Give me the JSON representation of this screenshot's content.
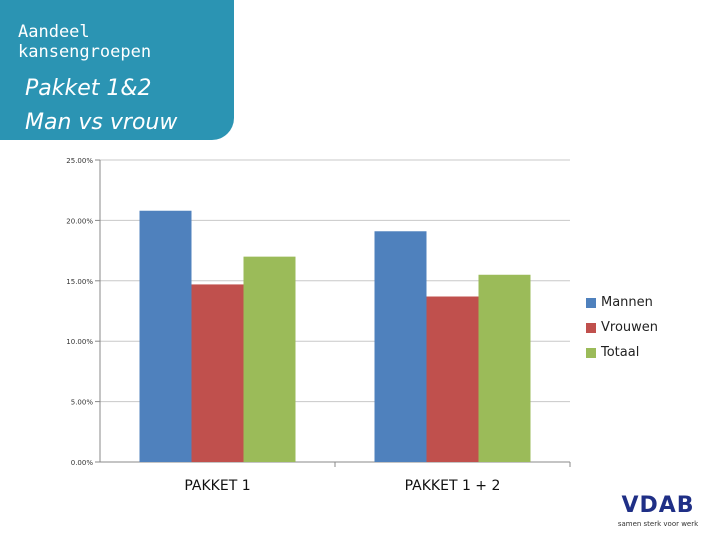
{
  "header": {
    "title": "Aandeel\nkansengroepen",
    "subtitle_line1": "Pakket 1&2",
    "subtitle_line2": "Man vs vrouw",
    "background_color": "#2b94b3"
  },
  "chart_data": {
    "type": "bar",
    "categories": [
      "PAKKET 1",
      "PAKKET 1 + 2"
    ],
    "series": [
      {
        "name": "Mannen",
        "values": [
          20.8,
          19.1
        ],
        "color": "#4f81bd"
      },
      {
        "name": "Vrouwen",
        "values": [
          14.7,
          13.7
        ],
        "color": "#c0504d"
      },
      {
        "name": "Totaal",
        "values": [
          17.0,
          15.5
        ],
        "color": "#9bbb59"
      }
    ],
    "ylim": [
      0,
      25
    ],
    "yticks": [
      0,
      5,
      10,
      15,
      20,
      25
    ],
    "ytick_labels": [
      "0.00%",
      "5.00%",
      "10.00%",
      "15.00%",
      "20.00%",
      "25.00%"
    ],
    "grid": true,
    "legend_position": "right"
  },
  "logo": {
    "word": "VDAB",
    "tagline": "samen sterk voor werk"
  }
}
